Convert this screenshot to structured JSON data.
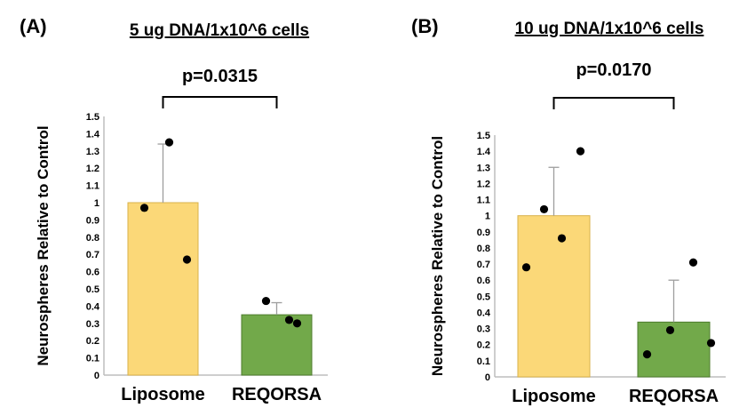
{
  "chart_data": [
    {
      "type": "bar",
      "panel_label": "(A)",
      "title": "5 ug DNA/1x10^6 cells",
      "ylabel": "Neurospheres Relative to Control",
      "xlabel": "",
      "ylim": [
        0,
        1.5
      ],
      "yticks": [
        "0",
        "0.1",
        "0.2",
        "0.3",
        "0.4",
        "0.5",
        "0.6",
        "0.7",
        "0.8",
        "0.9",
        "1",
        "1.1",
        "1.2",
        "1.3",
        "1.4",
        "1.5"
      ],
      "categories": [
        "Liposome",
        "REQORSA"
      ],
      "values": [
        1.0,
        0.35
      ],
      "error_upper": [
        0.34,
        0.07
      ],
      "bar_colors": [
        "#fbd878",
        "#72a94a"
      ],
      "bar_edge_colors": [
        "#d9b24a",
        "#4d7c2d"
      ],
      "points": [
        [
          0.97,
          0.67,
          1.35
        ],
        [
          0.43,
          0.32,
          0.3
        ]
      ],
      "annotation": "p=0.0315",
      "grid": false
    },
    {
      "type": "bar",
      "panel_label": "(B)",
      "title": "10 ug DNA/1x10^6 cells",
      "ylabel": "Neurospheres Relative to Control",
      "xlabel": "",
      "ylim": [
        0,
        1.5
      ],
      "yticks": [
        "0",
        "0.1",
        "0.2",
        "0.3",
        "0.4",
        "0.5",
        "0.6",
        "0.7",
        "0.8",
        "0.9",
        "1",
        "1.1",
        "1.2",
        "1.3",
        "1.4",
        "1.5"
      ],
      "categories": [
        "Liposome",
        "REQORSA"
      ],
      "values": [
        1.0,
        0.34
      ],
      "error_upper": [
        0.3,
        0.26
      ],
      "bar_colors": [
        "#fbd878",
        "#72a94a"
      ],
      "bar_edge_colors": [
        "#d9b24a",
        "#4d7c2d"
      ],
      "points": [
        [
          0.68,
          1.04,
          0.86,
          1.4
        ],
        [
          0.14,
          0.29,
          0.71,
          0.21
        ]
      ],
      "annotation": "p=0.0170",
      "grid": false
    }
  ]
}
